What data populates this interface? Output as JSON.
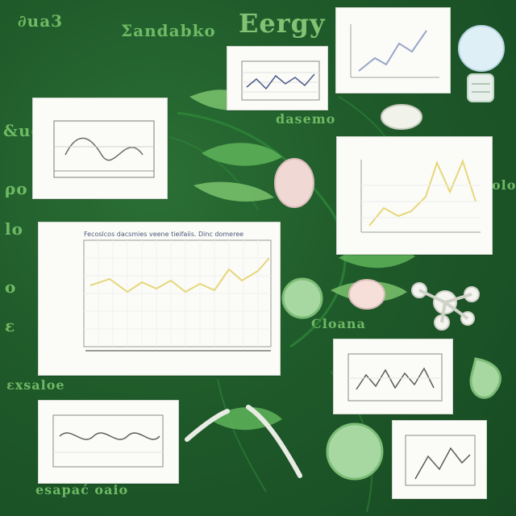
{
  "page": {
    "scribbles": {
      "top_right": "Eergy",
      "top_left": "∂ua3",
      "top_center": "Σandabko",
      "left_1": "&ue",
      "left_2": "ρo",
      "left_3": "lo",
      "left_4": "o",
      "left_5": "ɛ",
      "bottom_left": "ɛxsaloe",
      "bottom_center": "esapać oaio",
      "mid_right_1": "dasemo",
      "mid_right_2": "Cloana",
      "mid_right_3": "olo"
    },
    "cards": [
      {
        "id": "c1",
        "title": ""
      },
      {
        "id": "c2",
        "title": ""
      },
      {
        "id": "c3",
        "title": ""
      },
      {
        "id": "c4",
        "title": ""
      },
      {
        "id": "c5",
        "title": ""
      },
      {
        "id": "c6",
        "title": "Fecoslcos dacsmies veene tieifaiis. Dinc domeree"
      },
      {
        "id": "c7",
        "title": ""
      },
      {
        "id": "c8",
        "title": ""
      },
      {
        "id": "c9",
        "title": ""
      }
    ],
    "palette": {
      "board": "#1f5a2a",
      "leaf": "#77c46a",
      "card": "#fbfbf7",
      "line_blue": "#98a6c7",
      "line_yellow": "#e6d77a",
      "axis": "#6c6c6c"
    }
  }
}
